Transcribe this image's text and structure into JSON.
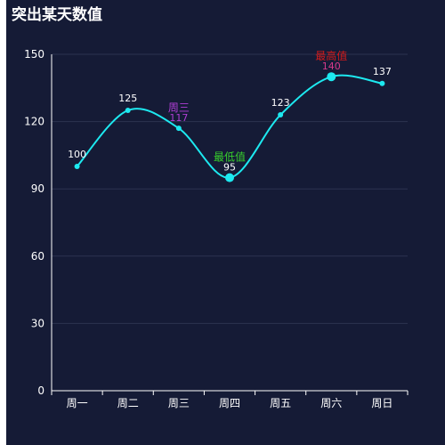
{
  "chart_data": {
    "type": "line",
    "title": "突出某天数值",
    "categories": [
      "周一",
      "周二",
      "周三",
      "周四",
      "周五",
      "周六",
      "周日"
    ],
    "series": [
      {
        "values": [
          100,
          125,
          117,
          95,
          123,
          140,
          137
        ],
        "color": "#1de9f0"
      }
    ],
    "ylim": [
      0,
      150
    ],
    "yticks": [
      0,
      30,
      60,
      90,
      120,
      150
    ],
    "grid": true,
    "annotations": [
      {
        "category": "周三",
        "label": "周三",
        "value": 117,
        "color": "#b13fd6"
      },
      {
        "category": "周四",
        "label": "最低值",
        "value": 95,
        "color": "#38d12c"
      },
      {
        "category": "周六",
        "label": "最高值",
        "value": 140,
        "color": "#d11b1b"
      }
    ]
  },
  "colors": {
    "background": "#151b36",
    "line": "#1de9f0",
    "grid": "#2c3350",
    "axis": "#ffffff"
  }
}
